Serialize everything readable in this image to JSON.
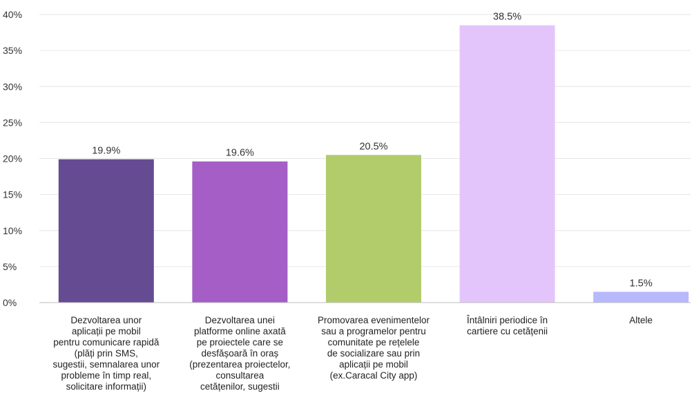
{
  "chart_data": {
    "type": "bar",
    "categories": [
      "Dezvoltarea unor\naplicații pe mobil\npentru comunicare rapidă\n(plăți prin SMS,\nsugestii, semnalarea unor\nprobleme în timp real,\nsolicitare informații)",
      "Dezvoltarea unei\nplatforme online axată\npe proiectele care se\ndesfășoară în oraș\n(prezentarea proiectelor,\nconsultarea\ncetățenilor, sugestii",
      "Promovarea evenimentelor\nsau a programelor pentru\ncomunitate pe rețelele\nde socializare sau prin\naplicații pe mobil\n(ex.Caracal City app)",
      "Întâlniri periodice în\ncartiere cu cetățenii",
      "Altele"
    ],
    "values": [
      19.9,
      19.6,
      20.5,
      38.5,
      1.5
    ],
    "value_labels": [
      "19.9%",
      "19.6%",
      "20.5%",
      "38.5%",
      "1.5%"
    ],
    "colors": [
      "#654b92",
      "#a45ec6",
      "#b2cc6c",
      "#e4c5fb",
      "#b8b8fc"
    ],
    "y_ticks": [
      0,
      5,
      10,
      15,
      20,
      25,
      30,
      35,
      40
    ],
    "y_tick_labels": [
      "0%",
      "5%",
      "10%",
      "15%",
      "20%",
      "25%",
      "30%",
      "35%",
      "40%"
    ],
    "ylim": [
      0,
      40
    ],
    "title": "",
    "xlabel": "",
    "ylabel": "",
    "grid": true,
    "legend": "none"
  }
}
